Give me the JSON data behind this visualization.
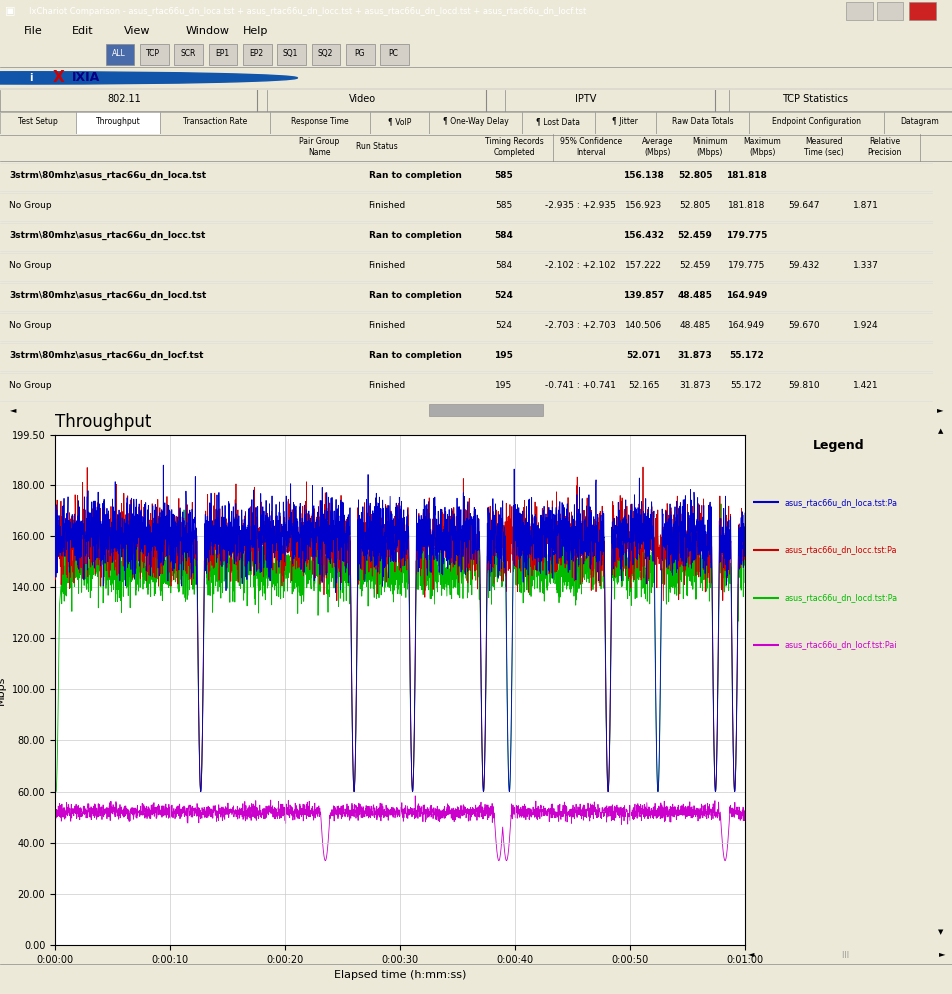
{
  "title_bar": "IxChariot Comparison - asus_rtac66u_dn_loca.tst + asus_rtac66u_dn_locc.tst + asus_rtac66u_dn_locd.tst + asus_rtac66u_dn_locf.tst",
  "plot_title": "Throughput",
  "ylabel": "Mbps",
  "xlabel": "Elapsed time (h:mm:ss)",
  "ylim_max": 199.5,
  "yticks": [
    0.0,
    20.0,
    40.0,
    60.0,
    80.0,
    100.0,
    120.0,
    140.0,
    160.0,
    180.0,
    199.5
  ],
  "xtick_positions": [
    0,
    600,
    1200,
    1800,
    2400,
    3000,
    3600
  ],
  "xtick_labels": [
    "0:00:00",
    "0:00:10",
    "0:00:20",
    "0:00:30",
    "0:00:40",
    "0:00:50",
    "0:01:00"
  ],
  "legend_entries": [
    {
      "label": "asus_rtac66u_dn_loca.tst:Pa",
      "color": "#0000CC"
    },
    {
      "label": "asus_rtac66u_dn_locc.tst:Pa",
      "color": "#CC0000"
    },
    {
      "label": "asus_rtac66u_dn_locd.tst:Pa",
      "color": "#00BB00"
    },
    {
      "label": "asus_rtac66u_dn_locf.tst:Pai",
      "color": "#CC00CC"
    }
  ],
  "win_bg": "#ECE9D8",
  "titlebar_bg": "#0A246A",
  "white": "#FFFFFF",
  "grid_color": "#CCCCCC",
  "table_rows": [
    {
      "name": "3strm\\80mhz\\asus_rtac66u_dn_loca.tst",
      "status": "Ran to completion",
      "completed": "585",
      "ci": "",
      "avg": "156.138",
      "min": "52.805",
      "max": "181.818",
      "time": "",
      "rp": "",
      "bold": true
    },
    {
      "name": "No Group",
      "status": "Finished",
      "completed": "585",
      "ci": "-2.935 : +2.935",
      "avg": "156.923",
      "min": "52.805",
      "max": "181.818",
      "time": "59.647",
      "rp": "1.871",
      "bold": false
    },
    {
      "name": "3strm\\80mhz\\asus_rtac66u_dn_locc.tst",
      "status": "Ran to completion",
      "completed": "584",
      "ci": "",
      "avg": "156.432",
      "min": "52.459",
      "max": "179.775",
      "time": "",
      "rp": "",
      "bold": true
    },
    {
      "name": "No Group",
      "status": "Finished",
      "completed": "584",
      "ci": "-2.102 : +2.102",
      "avg": "157.222",
      "min": "52.459",
      "max": "179.775",
      "time": "59.432",
      "rp": "1.337",
      "bold": false
    },
    {
      "name": "3strm\\80mhz\\asus_rtac66u_dn_locd.tst",
      "status": "Ran to completion",
      "completed": "524",
      "ci": "",
      "avg": "139.857",
      "min": "48.485",
      "max": "164.949",
      "time": "",
      "rp": "",
      "bold": true
    },
    {
      "name": "No Group",
      "status": "Finished",
      "completed": "524",
      "ci": "-2.703 : +2.703",
      "avg": "140.506",
      "min": "48.485",
      "max": "164.949",
      "time": "59.670",
      "rp": "1.924",
      "bold": false
    },
    {
      "name": "3strm\\80mhz\\asus_rtac66u_dn_locf.tst",
      "status": "Ran to completion",
      "completed": "195",
      "ci": "",
      "avg": "52.071",
      "min": "31.873",
      "max": "55.172",
      "time": "",
      "rp": "",
      "bold": true
    },
    {
      "name": "No Group",
      "status": "Finished",
      "completed": "195",
      "ci": "-0.741 : +0.741",
      "avg": "52.165",
      "min": "31.873",
      "max": "55.172",
      "time": "59.810",
      "rp": "1.421",
      "bold": false
    }
  ]
}
